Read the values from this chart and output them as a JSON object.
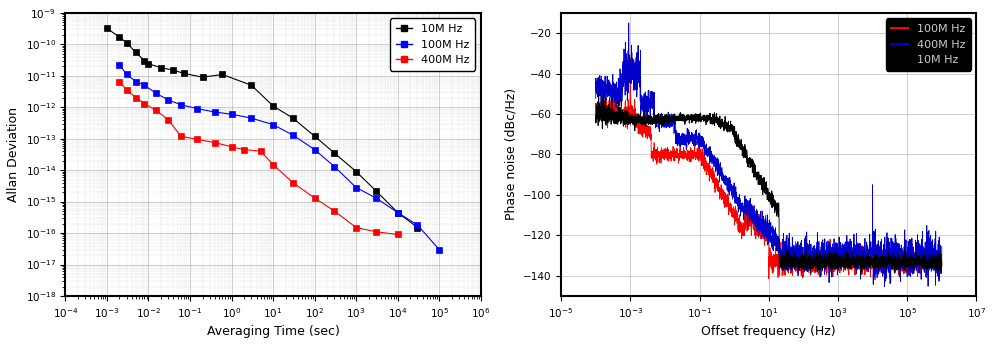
{
  "left_chart": {
    "xlabel": "Averaging Time (sec)",
    "ylabel": "Allan Deviation",
    "xlim": [
      0.0001,
      1000000.0
    ],
    "ylim": [
      1e-18,
      1e-09
    ],
    "series": {
      "10MHz": {
        "color": "#000000",
        "marker": "s",
        "x": [
          0.001,
          0.002,
          0.003,
          0.005,
          0.008,
          0.01,
          0.02,
          0.04,
          0.07,
          0.2,
          0.6,
          3.0,
          10.0,
          30.0,
          100.0,
          300.0,
          1000.0,
          3000.0,
          10000.0,
          30000.0
        ],
        "y": [
          3.2e-10,
          1.7e-10,
          1.1e-10,
          5.5e-11,
          3e-11,
          2.4e-11,
          1.8e-11,
          1.5e-11,
          1.2e-11,
          9e-12,
          1.1e-11,
          5e-12,
          1.1e-12,
          4.5e-13,
          1.2e-13,
          3.5e-14,
          9e-15,
          2.2e-15,
          4.5e-16,
          1.5e-16
        ]
      },
      "100MHz": {
        "color": "#0000ff",
        "marker": "s",
        "x": [
          0.002,
          0.003,
          0.005,
          0.008,
          0.015,
          0.03,
          0.06,
          0.15,
          0.4,
          1.0,
          3.0,
          10.0,
          30.0,
          100.0,
          300.0,
          1000.0,
          3000.0,
          10000.0,
          30000.0,
          100000.0
        ],
        "y": [
          2.2e-11,
          1.1e-11,
          6.5e-12,
          5e-12,
          2.8e-12,
          1.7e-12,
          1.2e-12,
          9e-13,
          7e-13,
          6e-13,
          4.5e-13,
          2.8e-13,
          1.3e-13,
          4.5e-14,
          1.3e-14,
          2.8e-15,
          1.3e-15,
          4.5e-16,
          1.8e-16,
          3e-17
        ]
      },
      "400MHz": {
        "color": "#ff0000",
        "marker": "s",
        "x": [
          0.002,
          0.003,
          0.005,
          0.008,
          0.015,
          0.03,
          0.06,
          0.15,
          0.4,
          1.0,
          2.0,
          5.0,
          10.0,
          30.0,
          100.0,
          300.0,
          1000.0,
          3000.0,
          10000.0
        ],
        "y": [
          6.5e-12,
          3.5e-12,
          2e-12,
          1.3e-12,
          8e-13,
          4e-13,
          1.2e-13,
          9.5e-14,
          7.5e-14,
          5.5e-14,
          4.5e-14,
          4e-14,
          1.5e-14,
          4e-15,
          1.3e-15,
          5e-16,
          1.5e-16,
          1.1e-16,
          9e-17
        ]
      }
    },
    "legend_order": [
      "10MHz",
      "100MHz",
      "400MHz"
    ],
    "legend_labels": [
      "10M Hz",
      "100M Hz",
      "400M Hz"
    ]
  },
  "right_chart": {
    "xlabel": "Offset frequency (Hz)",
    "ylabel": "Phase noise (dBc/Hz)",
    "xlim": [
      1e-05,
      10000000.0
    ],
    "ylim": [
      -150,
      -10
    ],
    "yticks": [
      -140,
      -120,
      -100,
      -80,
      -60,
      -40,
      -20
    ],
    "legend_order": [
      "100MHz",
      "400MHz",
      "10MHz"
    ],
    "legend_labels": [
      "100M Hz",
      "400M Hz",
      "10M Hz"
    ],
    "colors": {
      "100MHz": "#ff0000",
      "400MHz": "#0000cc",
      "10MHz": "#000000"
    }
  },
  "background_color": "#ffffff",
  "figure_width": 9.93,
  "figure_height": 3.45,
  "dpi": 100
}
